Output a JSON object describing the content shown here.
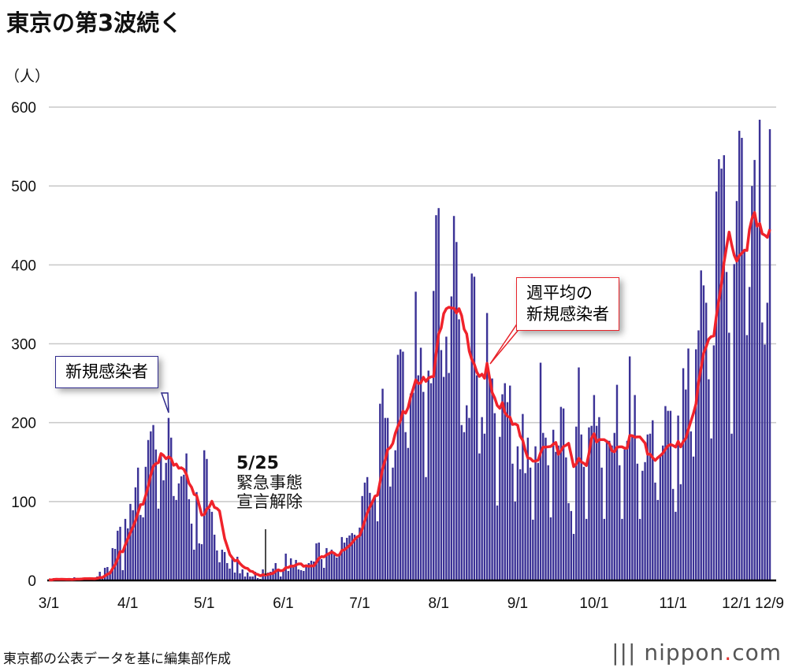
{
  "title": "東京の第3波続く",
  "unit": "（人）",
  "source": "東京都の公表データを基に編集部作成",
  "logo": "nippon.com",
  "colors": {
    "bar": "#3b3296",
    "line": "#f0232b",
    "grid": "#c8c8c8"
  },
  "annotations": {
    "bars_label": "新規感染者",
    "line_label_1": "週平均の",
    "line_label_2": "新規感染者",
    "event_date": "5/25",
    "event_1": "緊急事態",
    "event_2": "宣言解除"
  },
  "chart_data": {
    "type": "bar",
    "title": "東京の第3波続く",
    "ylabel": "（人）",
    "xlabel": "",
    "ylim": [
      0,
      600
    ],
    "yticks": [
      0,
      100,
      200,
      300,
      400,
      500,
      600
    ],
    "grid": true,
    "start_date": "3/1",
    "end_date": "12/9",
    "xticks": [
      {
        "day": 0,
        "label": "3/1"
      },
      {
        "day": 31,
        "label": "4/1"
      },
      {
        "day": 61,
        "label": "5/1"
      },
      {
        "day": 92,
        "label": "6/1"
      },
      {
        "day": 122,
        "label": "7/1"
      },
      {
        "day": 153,
        "label": "8/1"
      },
      {
        "day": 184,
        "label": "9/1"
      },
      {
        "day": 214,
        "label": "10/1"
      },
      {
        "day": 245,
        "label": "11/1"
      },
      {
        "day": 275,
        "label": "12/1"
      },
      {
        "day": 283,
        "label": "12/9"
      }
    ],
    "series": [
      {
        "name": "新規感染者",
        "type": "bar",
        "values": [
          1,
          0,
          3,
          2,
          1,
          2,
          1,
          0,
          1,
          1,
          4,
          2,
          2,
          3,
          3,
          1,
          2,
          3,
          1,
          5,
          11,
          2,
          16,
          17,
          12,
          41,
          40,
          63,
          68,
          13,
          78,
          66,
          97,
          89,
          118,
          143,
          83,
          80,
          144,
          178,
          189,
          197,
          166,
          91,
          161,
          127,
          149,
          206,
          181,
          107,
          102,
          123,
          132,
          134,
          161,
          103,
          72,
          39,
          112,
          47,
          46,
          165,
          154,
          91,
          87,
          58,
          38,
          23,
          39,
          36,
          22,
          15,
          28,
          10,
          30,
          9,
          14,
          5,
          10,
          5,
          5,
          11,
          3,
          2,
          14,
          8,
          10,
          11,
          15,
          22,
          14,
          5,
          13,
          34,
          12,
          28,
          20,
          26,
          14,
          13,
          12,
          18,
          22,
          25,
          24,
          47,
          48,
          27,
          16,
          41,
          35,
          39,
          35,
          29,
          31,
          55,
          48,
          54,
          57,
          60,
          58,
          54,
          67,
          107,
          124,
          131,
          111,
          102,
          106,
          75,
          224,
          243,
          206,
          206,
          119,
          143,
          165,
          286,
          293,
          290,
          188,
          168,
          237,
          238,
          366,
          260,
          295,
          239,
          131,
          266,
          250,
          367,
          463,
          472,
          292,
          258,
          309,
          263,
          360,
          462,
          429,
          331,
          197,
          188,
          222,
          206,
          389,
          385,
          260,
          161,
          207,
          186,
          339,
          258,
          256,
          212,
          95,
          182,
          236,
          250,
          226,
          247,
          148,
          100,
          170,
          141,
          211,
          136,
          181,
          143,
          77,
          170,
          149,
          276,
          187,
          181,
          146,
          80,
          191,
          163,
          171,
          220,
          218,
          156,
          98,
          88,
          59,
          195,
          270,
          185,
          144,
          78,
          194,
          196,
          235,
          196,
          207,
          143,
          78,
          178,
          177,
          171,
          187,
          248,
          146,
          78,
          166,
          177,
          284,
          185,
          235,
          148,
          78,
          139,
          150,
          185,
          186,
          203,
          124,
          102,
          158,
          171,
          221,
          215,
          215,
          116,
          87,
          209,
          122,
          269,
          242,
          294,
          189,
          157,
          293,
          317,
          393,
          374,
          352,
          255,
          180,
          298,
          493,
          534,
          522,
          539,
          391,
          314,
          186,
          401,
          481,
          570,
          561,
          418,
          311,
          372,
          500,
          533,
          449,
          584,
          327,
          299,
          352,
          572
        ]
      },
      {
        "name": "週平均の新規感染者",
        "type": "line",
        "derived": "7-day trailing average of daily values"
      }
    ],
    "annotations": [
      "新規感染者",
      "週平均の新規感染者",
      "5/25 緊急事態宣言解除"
    ]
  }
}
